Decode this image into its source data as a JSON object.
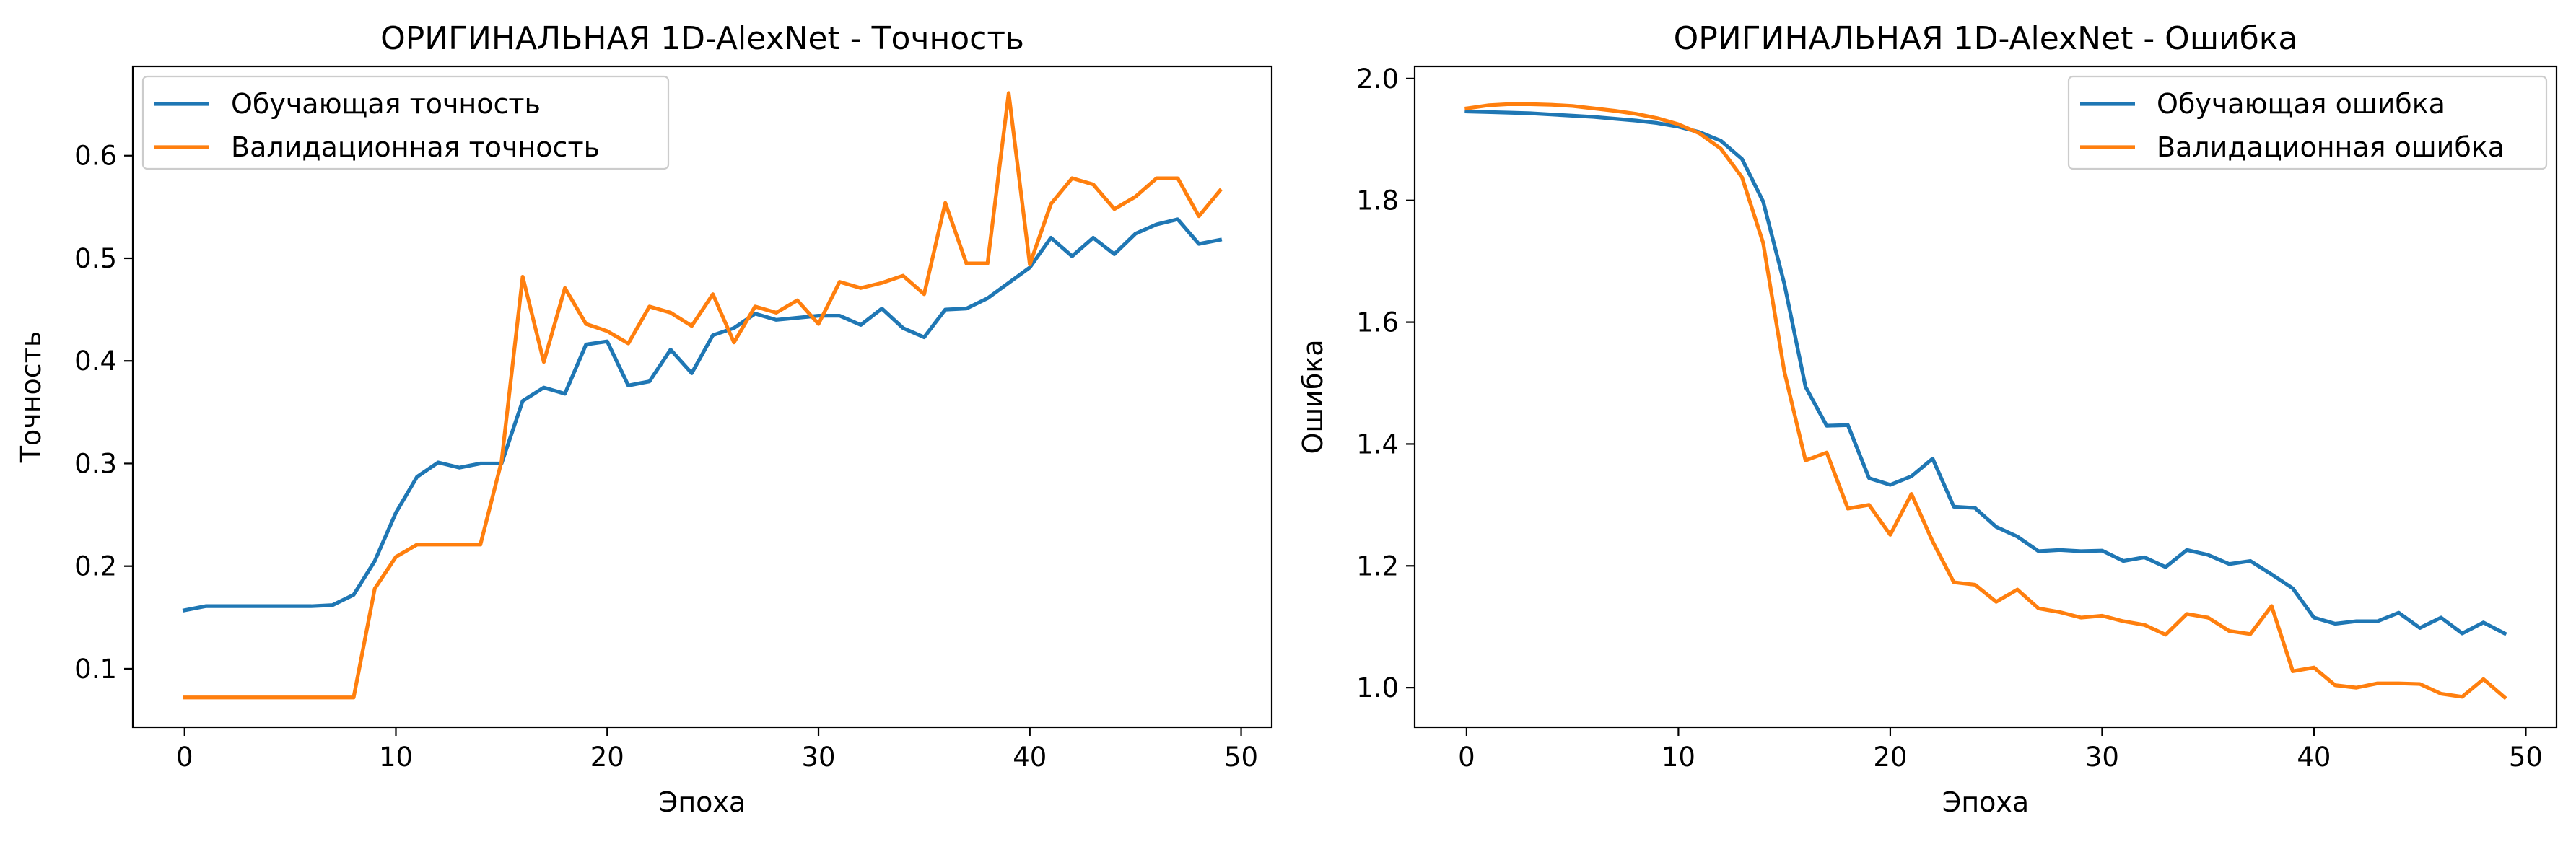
{
  "chart_data": [
    {
      "type": "line",
      "title": "ОРИГИНАЛЬНАЯ 1D-AlexNet - Точность",
      "xlabel": "Эпоха",
      "ylabel": "Точность",
      "xlim": [
        -2.45,
        51.45
      ],
      "ylim": [
        0.043,
        0.687
      ],
      "xticks": [
        0,
        10,
        20,
        30,
        40,
        50
      ],
      "yticks": [
        0.1,
        0.2,
        0.3,
        0.4,
        0.5,
        0.6
      ],
      "xtick_labels": [
        "0",
        "10",
        "20",
        "30",
        "40",
        "50"
      ],
      "ytick_labels": [
        "0.1",
        "0.2",
        "0.3",
        "0.4",
        "0.5",
        "0.6"
      ],
      "grid": false,
      "legend_position": "top-left",
      "series": [
        {
          "name": "Обучающая точность",
          "color": "#1f77b4",
          "x": [
            0,
            1,
            2,
            3,
            4,
            5,
            6,
            7,
            8,
            9,
            10,
            11,
            12,
            13,
            14,
            15,
            16,
            17,
            18,
            19,
            20,
            21,
            22,
            23,
            24,
            25,
            26,
            27,
            28,
            29,
            30,
            31,
            32,
            33,
            34,
            35,
            36,
            37,
            38,
            39,
            40,
            41,
            42,
            43,
            44,
            45,
            46,
            47,
            48,
            49
          ],
          "values": [
            0.157,
            0.161,
            0.161,
            0.161,
            0.161,
            0.161,
            0.161,
            0.162,
            0.172,
            0.205,
            0.252,
            0.287,
            0.301,
            0.296,
            0.3,
            0.3,
            0.361,
            0.374,
            0.368,
            0.416,
            0.419,
            0.376,
            0.38,
            0.411,
            0.388,
            0.425,
            0.432,
            0.446,
            0.44,
            0.442,
            0.444,
            0.444,
            0.435,
            0.451,
            0.432,
            0.423,
            0.45,
            0.451,
            0.461,
            0.476,
            0.491,
            0.52,
            0.502,
            0.52,
            0.504,
            0.524,
            0.533,
            0.538,
            0.514,
            0.518
          ]
        },
        {
          "name": "Валидационная точность",
          "color": "#ff7f0e",
          "x": [
            0,
            1,
            2,
            3,
            4,
            5,
            6,
            7,
            8,
            9,
            10,
            11,
            12,
            13,
            14,
            15,
            16,
            17,
            18,
            19,
            20,
            21,
            22,
            23,
            24,
            25,
            26,
            27,
            28,
            29,
            30,
            31,
            32,
            33,
            34,
            35,
            36,
            37,
            38,
            39,
            40,
            41,
            42,
            43,
            44,
            45,
            46,
            47,
            48,
            49
          ],
          "values": [
            0.072,
            0.072,
            0.072,
            0.072,
            0.072,
            0.072,
            0.072,
            0.072,
            0.072,
            0.178,
            0.209,
            0.221,
            0.221,
            0.221,
            0.221,
            0.302,
            0.482,
            0.399,
            0.471,
            0.436,
            0.429,
            0.417,
            0.453,
            0.447,
            0.434,
            0.465,
            0.418,
            0.453,
            0.447,
            0.459,
            0.436,
            0.477,
            0.471,
            0.476,
            0.483,
            0.465,
            0.554,
            0.495,
            0.495,
            0.661,
            0.494,
            0.553,
            0.578,
            0.572,
            0.548,
            0.56,
            0.578,
            0.578,
            0.541,
            0.566
          ]
        }
      ]
    },
    {
      "type": "line",
      "title": "ОРИГИНАЛЬНАЯ 1D-AlexNet - Ошибка",
      "xlabel": "Эпоха",
      "ylabel": "Ошибка",
      "xlim": [
        -2.45,
        51.45
      ],
      "ylim": [
        0.935,
        2.02
      ],
      "xticks": [
        0,
        10,
        20,
        30,
        40,
        50
      ],
      "yticks": [
        1.0,
        1.2,
        1.4,
        1.6,
        1.8,
        2.0
      ],
      "xtick_labels": [
        "0",
        "10",
        "20",
        "30",
        "40",
        "50"
      ],
      "ytick_labels": [
        "1.0",
        "1.2",
        "1.4",
        "1.6",
        "1.8",
        "2.0"
      ],
      "grid": false,
      "legend_position": "top-right",
      "series": [
        {
          "name": "Обучающая ошибка",
          "color": "#1f77b4",
          "x": [
            0,
            1,
            2,
            3,
            4,
            5,
            6,
            7,
            8,
            9,
            10,
            11,
            12,
            13,
            14,
            15,
            16,
            17,
            18,
            19,
            20,
            21,
            22,
            23,
            24,
            25,
            26,
            27,
            28,
            29,
            30,
            31,
            32,
            33,
            34,
            35,
            36,
            37,
            38,
            39,
            40,
            41,
            42,
            43,
            44,
            45,
            46,
            47,
            48,
            49
          ],
          "values": [
            1.946,
            1.945,
            1.944,
            1.943,
            1.941,
            1.939,
            1.937,
            1.934,
            1.931,
            1.927,
            1.921,
            1.912,
            1.898,
            1.868,
            1.798,
            1.663,
            1.494,
            1.43,
            1.431,
            1.344,
            1.333,
            1.347,
            1.376,
            1.297,
            1.295,
            1.264,
            1.248,
            1.224,
            1.226,
            1.224,
            1.225,
            1.208,
            1.214,
            1.198,
            1.226,
            1.218,
            1.203,
            1.208,
            1.186,
            1.163,
            1.115,
            1.105,
            1.109,
            1.109,
            1.123,
            1.098,
            1.115,
            1.089,
            1.107,
            1.089
          ]
        },
        {
          "name": "Валидационная ошибка",
          "color": "#ff7f0e",
          "x": [
            0,
            1,
            2,
            3,
            4,
            5,
            6,
            7,
            8,
            9,
            10,
            11,
            12,
            13,
            14,
            15,
            16,
            17,
            18,
            19,
            20,
            21,
            22,
            23,
            24,
            25,
            26,
            27,
            28,
            29,
            30,
            31,
            32,
            33,
            34,
            35,
            36,
            37,
            38,
            39,
            40,
            41,
            42,
            43,
            44,
            45,
            46,
            47,
            48,
            49
          ],
          "values": [
            1.951,
            1.956,
            1.958,
            1.958,
            1.957,
            1.955,
            1.951,
            1.947,
            1.942,
            1.935,
            1.925,
            1.91,
            1.885,
            1.838,
            1.73,
            1.519,
            1.373,
            1.386,
            1.294,
            1.3,
            1.251,
            1.318,
            1.24,
            1.173,
            1.169,
            1.141,
            1.161,
            1.13,
            1.124,
            1.115,
            1.118,
            1.109,
            1.103,
            1.087,
            1.121,
            1.115,
            1.093,
            1.088,
            1.134,
            1.027,
            1.033,
            1.004,
            1.0,
            1.007,
            1.007,
            1.006,
            0.99,
            0.985,
            1.014,
            0.984
          ]
        }
      ]
    }
  ]
}
